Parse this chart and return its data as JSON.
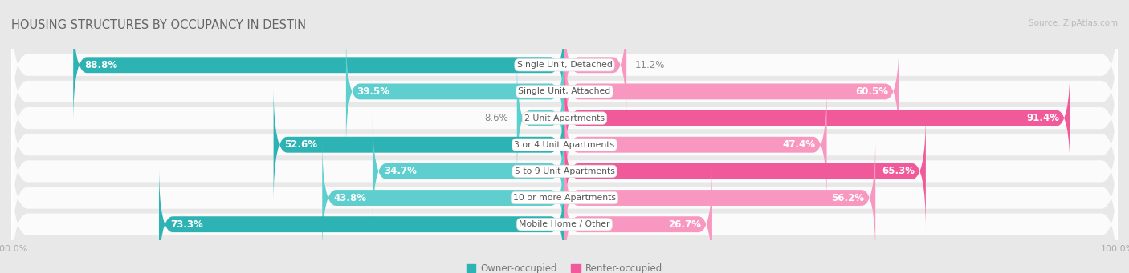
{
  "title": "HOUSING STRUCTURES BY OCCUPANCY IN DESTIN",
  "source": "Source: ZipAtlas.com",
  "categories": [
    "Single Unit, Detached",
    "Single Unit, Attached",
    "2 Unit Apartments",
    "3 or 4 Unit Apartments",
    "5 to 9 Unit Apartments",
    "10 or more Apartments",
    "Mobile Home / Other"
  ],
  "owner_pct": [
    88.8,
    39.5,
    8.6,
    52.6,
    34.7,
    43.8,
    73.3
  ],
  "renter_pct": [
    11.2,
    60.5,
    91.4,
    47.4,
    65.3,
    56.2,
    26.7
  ],
  "owner_dark_color": "#2db3b3",
  "owner_light_color": "#5ecece",
  "renter_dark_color": "#f05a9a",
  "renter_light_color": "#f898c0",
  "owner_dark_rows": [
    0,
    3,
    6
  ],
  "renter_dark_rows": [
    2,
    4
  ],
  "row_bg_odd": "#f5f5f5",
  "row_bg_even": "#ebebeb",
  "bg_color": "#e8e8e8",
  "title_color": "#666666",
  "source_color": "#bbbbbb",
  "axis_label_color": "#aaaaaa",
  "legend_owner": "Owner-occupied",
  "legend_renter": "Renter-occupied",
  "figsize": [
    14.06,
    3.41
  ],
  "dpi": 100
}
